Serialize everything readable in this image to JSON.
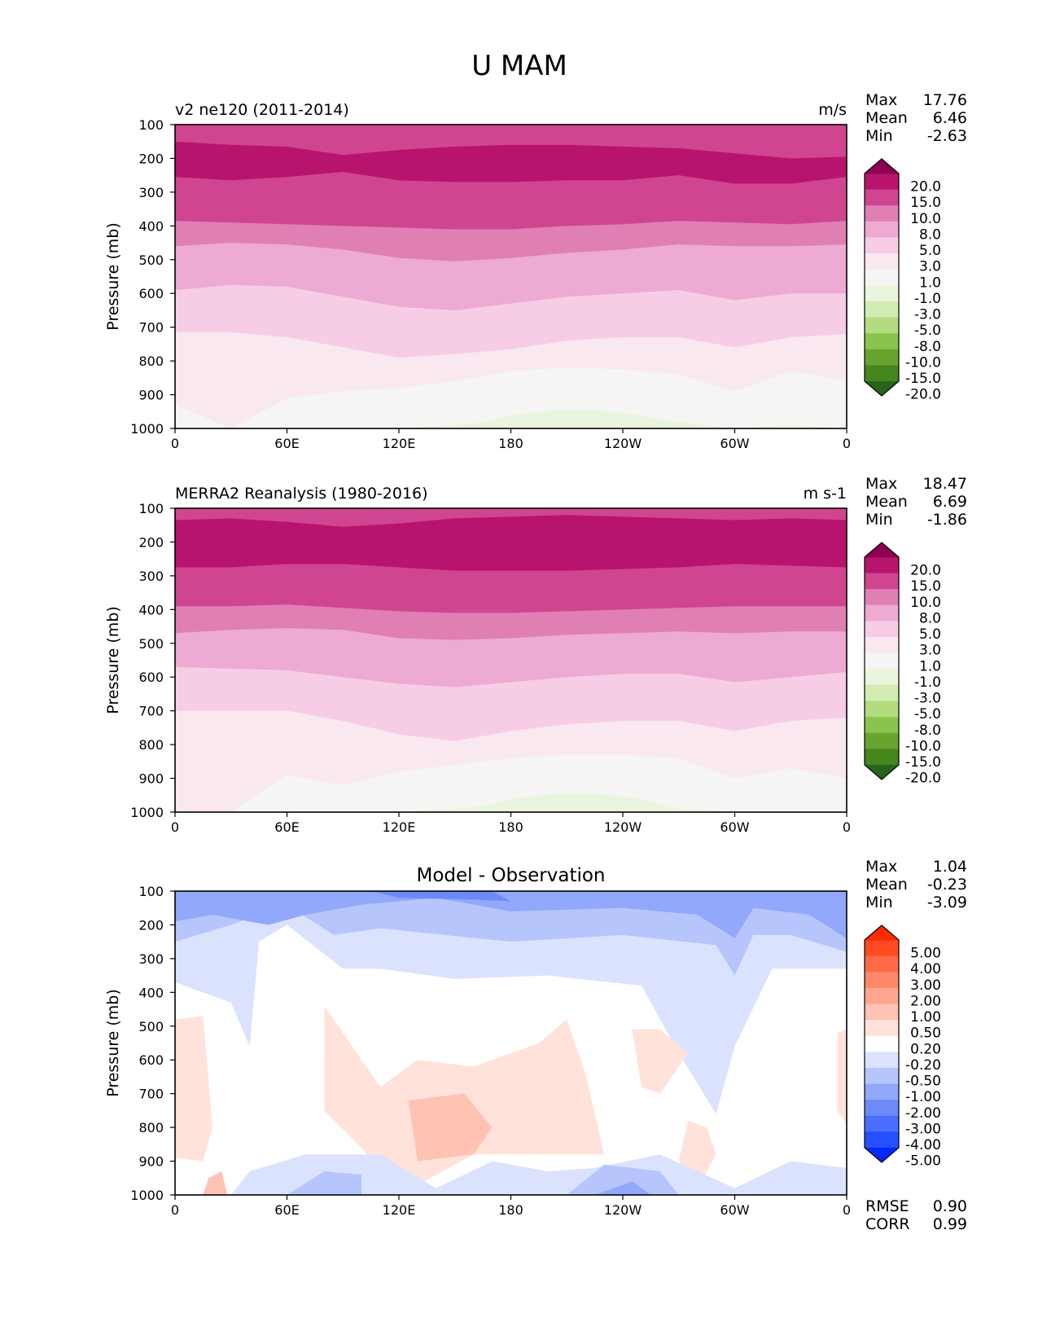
{
  "figure_title": "U MAM",
  "chart_data": [
    {
      "type": "heatmap",
      "subtype": "filled-contour",
      "title_left": "v2 ne120 (2011-2014)",
      "title_right": "m/s",
      "xlabel": "",
      "ylabel": "Pressure (mb)",
      "x_tick_labels": [
        "0",
        "60E",
        "120E",
        "180",
        "120W",
        "60W",
        "0"
      ],
      "x_ticks_deg": [
        0,
        60,
        120,
        180,
        240,
        300,
        360
      ],
      "xlim": [
        0,
        360
      ],
      "y_tick_labels": [
        "100",
        "200",
        "300",
        "400",
        "500",
        "600",
        "700",
        "800",
        "900",
        "1000"
      ],
      "ylim": [
        100,
        1000
      ],
      "y_inverted": true,
      "stats": [
        {
          "label": "Max",
          "value": "17.76"
        },
        {
          "label": "Mean",
          "value": "6.46"
        },
        {
          "label": "Min",
          "value": "-2.63"
        }
      ],
      "colorbar": {
        "levels": [
          "20.0",
          "15.0",
          "10.0",
          "8.0",
          "5.0",
          "3.0",
          "1.0",
          "-1.0",
          "-3.0",
          "-5.0",
          "-8.0",
          "-10.0",
          "-15.0",
          "-20.0"
        ],
        "colors": [
          "#8e0152",
          "#b8146e",
          "#d0458f",
          "#e07fb4",
          "#edaad2",
          "#f7cde6",
          "#fae8f1",
          "#f5f5f3",
          "#e9f5dc",
          "#d3ecb2",
          "#b2dc7e",
          "#8bc34f",
          "#68a42f",
          "#45861f",
          "#276419"
        ],
        "extend": "both"
      },
      "x_samples_deg": [
        0,
        30,
        60,
        90,
        120,
        150,
        180,
        210,
        240,
        270,
        300,
        330,
        360
      ],
      "band_boundaries": [
        {
          "level": 15.0,
          "upper_mb": [
            150,
            160,
            165,
            190,
            175,
            165,
            160,
            160,
            165,
            170,
            185,
            200,
            195
          ],
          "lower_mb": [
            255,
            265,
            255,
            240,
            265,
            270,
            270,
            265,
            265,
            250,
            275,
            275,
            255
          ]
        },
        {
          "level": 10.0,
          "upper_mb": [
            100,
            100,
            100,
            100,
            100,
            100,
            100,
            100,
            100,
            100,
            100,
            100,
            100
          ],
          "lower_mb": [
            385,
            390,
            395,
            400,
            405,
            410,
            410,
            400,
            395,
            385,
            390,
            395,
            385
          ]
        },
        {
          "level": 8.0,
          "lower_mb": [
            460,
            450,
            455,
            470,
            495,
            505,
            495,
            480,
            470,
            455,
            460,
            460,
            455
          ]
        },
        {
          "level": 5.0,
          "lower_mb": [
            590,
            575,
            580,
            610,
            640,
            650,
            630,
            610,
            600,
            590,
            620,
            600,
            600
          ]
        },
        {
          "level": 3.0,
          "lower_mb": [
            715,
            715,
            730,
            760,
            790,
            780,
            765,
            740,
            730,
            730,
            760,
            730,
            720
          ]
        },
        {
          "level": 1.0,
          "lower_mb": [
            930,
            1000,
            910,
            890,
            880,
            860,
            830,
            820,
            825,
            840,
            890,
            830,
            860
          ]
        },
        {
          "level": -1.0,
          "lower_mb": [
            1000,
            1000,
            1000,
            1000,
            1000,
            990,
            975,
            960,
            960,
            980,
            1000,
            990,
            1000
          ]
        }
      ]
    },
    {
      "type": "heatmap",
      "subtype": "filled-contour",
      "title_left": "MERRA2 Reanalysis (1980-2016)",
      "title_right": "m s-1",
      "xlabel": "",
      "ylabel": "Pressure (mb)",
      "x_tick_labels": [
        "0",
        "60E",
        "120E",
        "180",
        "120W",
        "60W",
        "0"
      ],
      "x_ticks_deg": [
        0,
        60,
        120,
        180,
        240,
        300,
        360
      ],
      "xlim": [
        0,
        360
      ],
      "y_tick_labels": [
        "100",
        "200",
        "300",
        "400",
        "500",
        "600",
        "700",
        "800",
        "900",
        "1000"
      ],
      "ylim": [
        100,
        1000
      ],
      "y_inverted": true,
      "stats": [
        {
          "label": "Max",
          "value": "18.47"
        },
        {
          "label": "Mean",
          "value": "6.69"
        },
        {
          "label": "Min",
          "value": "-1.86"
        }
      ],
      "colorbar": {
        "levels": [
          "20.0",
          "15.0",
          "10.0",
          "8.0",
          "5.0",
          "3.0",
          "1.0",
          "-1.0",
          "-3.0",
          "-5.0",
          "-8.0",
          "-10.0",
          "-15.0",
          "-20.0"
        ],
        "colors": [
          "#8e0152",
          "#b8146e",
          "#d0458f",
          "#e07fb4",
          "#edaad2",
          "#f7cde6",
          "#fae8f1",
          "#f5f5f3",
          "#e9f5dc",
          "#d3ecb2",
          "#b2dc7e",
          "#8bc34f",
          "#68a42f",
          "#45861f",
          "#276419"
        ],
        "extend": "both"
      },
      "x_samples_deg": [
        0,
        30,
        60,
        90,
        120,
        150,
        180,
        210,
        240,
        270,
        300,
        330,
        360
      ],
      "band_boundaries": [
        {
          "level": 15.0,
          "upper_mb": [
            135,
            130,
            140,
            155,
            145,
            130,
            125,
            120,
            125,
            130,
            135,
            130,
            135
          ],
          "lower_mb": [
            275,
            275,
            265,
            265,
            275,
            285,
            285,
            285,
            280,
            275,
            265,
            270,
            275
          ]
        },
        {
          "level": 10.0,
          "upper_mb": [
            100,
            100,
            100,
            100,
            100,
            100,
            100,
            100,
            100,
            100,
            100,
            100,
            100
          ],
          "lower_mb": [
            390,
            390,
            385,
            395,
            405,
            410,
            410,
            405,
            400,
            395,
            390,
            390,
            390
          ]
        },
        {
          "level": 8.0,
          "lower_mb": [
            470,
            460,
            455,
            460,
            485,
            490,
            485,
            475,
            470,
            465,
            470,
            465,
            465
          ]
        },
        {
          "level": 5.0,
          "lower_mb": [
            570,
            575,
            580,
            600,
            620,
            630,
            615,
            600,
            590,
            590,
            615,
            600,
            585
          ]
        },
        {
          "level": 3.0,
          "lower_mb": [
            700,
            700,
            700,
            730,
            770,
            790,
            760,
            740,
            730,
            730,
            760,
            730,
            720
          ]
        },
        {
          "level": 1.0,
          "lower_mb": [
            1000,
            1000,
            890,
            920,
            880,
            860,
            840,
            830,
            830,
            840,
            900,
            870,
            900
          ]
        },
        {
          "level": -1.0,
          "lower_mb": [
            1000,
            1000,
            1000,
            1000,
            1000,
            990,
            975,
            965,
            970,
            990,
            1000,
            1000,
            1000
          ]
        }
      ]
    },
    {
      "type": "heatmap",
      "subtype": "filled-contour",
      "title_center": "Model - Observation",
      "xlabel": "",
      "ylabel": "Pressure (mb)",
      "x_tick_labels": [
        "0",
        "60E",
        "120E",
        "180",
        "120W",
        "60W",
        "0"
      ],
      "x_ticks_deg": [
        0,
        60,
        120,
        180,
        240,
        300,
        360
      ],
      "xlim": [
        0,
        360
      ],
      "y_tick_labels": [
        "100",
        "200",
        "300",
        "400",
        "500",
        "600",
        "700",
        "800",
        "900",
        "1000"
      ],
      "ylim": [
        100,
        1000
      ],
      "y_inverted": true,
      "stats": [
        {
          "label": "Max",
          "value": "1.04"
        },
        {
          "label": "Mean",
          "value": "-0.23"
        },
        {
          "label": "Min",
          "value": "-3.09"
        }
      ],
      "metrics": [
        {
          "label": "RMSE",
          "value": "0.90"
        },
        {
          "label": "CORR",
          "value": "0.99"
        }
      ],
      "colorbar": {
        "levels": [
          "5.00",
          "4.00",
          "3.00",
          "2.00",
          "1.00",
          "0.50",
          "0.20",
          "-0.20",
          "-0.50",
          "-1.00",
          "-2.00",
          "-3.00",
          "-4.00",
          "-5.00"
        ],
        "colors": [
          "#ff2a00",
          "#ff4a22",
          "#ff6a47",
          "#ff886b",
          "#ffa590",
          "#ffc2b3",
          "#ffe2da",
          "#ffffff",
          "#dbe2fe",
          "#b7c5fd",
          "#91a8fb",
          "#6d8afa",
          "#4a6dff",
          "#2650ff",
          "#0028ff"
        ],
        "extend": "both"
      },
      "features": [
        {
          "desc": "negative upper-level band",
          "range": "-0.2 to -2.0",
          "pressure_mb": [
            100,
            350
          ]
        },
        {
          "desc": "strongest negative",
          "range": "-2.0 to -3.0",
          "lon_deg": [
            100,
            190
          ],
          "pressure_mb": [
            100,
            160
          ]
        },
        {
          "desc": "positive mid-level patches",
          "range": "0.2 to 1.0",
          "lon_deg": [
            0,
            20,
            80,
            200,
            235,
            265
          ],
          "pressure_mb": [
            450,
            950
          ]
        },
        {
          "desc": "positive core",
          "range": "0.5 to 1.0",
          "lon_deg": [
            120,
            165
          ],
          "pressure_mb": [
            700,
            900
          ]
        },
        {
          "desc": "negative near-surface",
          "range": "-0.2 to -2.0",
          "pressure_mb": [
            880,
            1000
          ]
        }
      ]
    }
  ]
}
